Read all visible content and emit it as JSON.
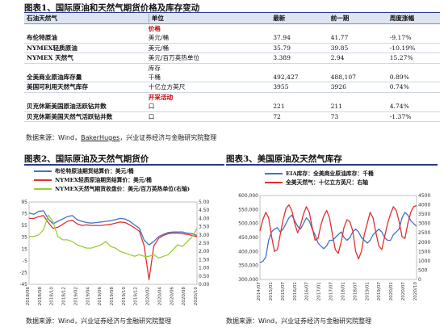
{
  "table": {
    "title": "图表1、国际原油和天然气期货价格及库存变动",
    "headers": [
      "石油天然气",
      "单位",
      "最新",
      "前一期",
      "周度涨幅"
    ],
    "sections": [
      {
        "label": "价格",
        "rows": [
          {
            "name": "布伦特原油",
            "unit": "美元/桶",
            "latest": "37.94",
            "prev": "41.77",
            "chg": "-9.17%"
          },
          {
            "name": "NYMEX轻质原油",
            "unit": "美元/桶",
            "latest": "35.79",
            "prev": "39.85",
            "chg": "-10.19%"
          },
          {
            "name": "NYMEX 天然气",
            "unit": "美元/百万英热单位",
            "latest": "3.389",
            "prev": "2.94",
            "chg": "15.27%"
          }
        ]
      },
      {
        "label": "库存",
        "rows": [
          {
            "name": "全美商业原油库存量",
            "unit": "千桶",
            "latest": "492,427",
            "prev": "488,107",
            "chg": "0.89%"
          },
          {
            "name": "美国可利用天然气库存",
            "unit": "十亿立方英尺",
            "latest": "3955",
            "prev": "3926",
            "chg": "0.74%"
          }
        ]
      },
      {
        "label": "开采活动",
        "rows": [
          {
            "name": "贝克休斯美国原油活跃钻井数",
            "unit": "口",
            "latest": "221",
            "prev": "211",
            "chg": "4.74%"
          },
          {
            "name": "贝克休斯美国天然气活跃钻井数",
            "unit": "口",
            "latest": "72",
            "prev": "73",
            "chg": "-1.37%"
          }
        ]
      }
    ],
    "source_prefix": "数据来源：Wind，",
    "source_link": "BakerHuges",
    "source_suffix": "，兴业证券经济与金融研究院整理"
  },
  "colors": {
    "rule": "#2b3a8c",
    "blue": "#4472c4",
    "red": "#e0302f",
    "green": "#9acd32",
    "section": "#c00000"
  },
  "chart_data": [
    {
      "type": "line",
      "title": "图表2、国际原油及天然气期货价",
      "source": "数据来源：Wind，兴业证券经济与金融研究院整理",
      "y_left": {
        "min": -45,
        "max": 95,
        "ticks": [
          "-45",
          "-25",
          "-5",
          "15",
          "35",
          "55",
          "75",
          "95"
        ]
      },
      "y_right": {
        "min": 0.0,
        "max": 5.0,
        "ticks": [
          "0.00",
          "0.50",
          "1.00",
          "1.50",
          "2.00",
          "2.50",
          "3.00",
          "3.50",
          "4.00",
          "4.50",
          "5.00"
        ]
      },
      "x_ticks": [
        "2018/06",
        "2018/08",
        "2018/10",
        "2018/12",
        "2019/02",
        "2019/04",
        "2019/06",
        "2019/08",
        "2019/10",
        "2019/12",
        "2020/02",
        "2020/04",
        "2020/06",
        "2020/08",
        "2020/10"
      ],
      "series": [
        {
          "name": "布伦特原油期货结算价：美元/桶",
          "axis": "left",
          "color": "#4472c4",
          "values": [
            76,
            74,
            79,
            80,
            66,
            58,
            62,
            66,
            70,
            72,
            65,
            62,
            60,
            59,
            60,
            61,
            62,
            63,
            65,
            67,
            66,
            62,
            56,
            50,
            30,
            22,
            28,
            36,
            40,
            43,
            44,
            44,
            44,
            42,
            41,
            38
          ]
        },
        {
          "name": "NYMEX轻质原油期货结算价：美元/桶",
          "axis": "left",
          "color": "#e0302f",
          "values": [
            67,
            67,
            70,
            72,
            60,
            50,
            52,
            57,
            62,
            64,
            58,
            55,
            56,
            55,
            55,
            55,
            56,
            57,
            59,
            61,
            60,
            56,
            51,
            45,
            20,
            -37,
            20,
            33,
            38,
            41,
            42,
            42,
            41,
            40,
            38,
            36
          ]
        },
        {
          "name": "NYMEX天然气期货收盘价：美元/百万英热单位(右轴)",
          "axis": "right",
          "color": "#9acd32",
          "values": [
            2.9,
            2.9,
            3.0,
            3.3,
            4.2,
            3.8,
            2.9,
            2.7,
            2.7,
            2.6,
            2.4,
            2.3,
            2.2,
            2.2,
            2.3,
            2.4,
            2.6,
            2.3,
            2.2,
            2.0,
            1.9,
            1.8,
            1.7,
            1.8,
            1.7,
            1.7,
            1.8,
            1.6,
            1.7,
            1.8,
            2.1,
            2.4,
            2.3,
            2.6,
            2.9,
            3.389
          ]
        }
      ]
    },
    {
      "type": "line",
      "title": "图表3、美国原油及天然气库存",
      "source": "数据来源：Wind，兴业证券经济与金融研究院整理",
      "y_left": {
        "min": 300000,
        "max": 600000,
        "ticks": [
          "300,000",
          "350,000",
          "400,000",
          "450,000",
          "500,000",
          "550,000",
          "600,000"
        ]
      },
      "y_right": {
        "min": 0,
        "max": 4500,
        "ticks": [
          "0",
          "500",
          "1000",
          "1500",
          "2000",
          "2500",
          "3000",
          "3500",
          "4000",
          "4500"
        ]
      },
      "x_ticks": [
        "2014/07",
        "2015/01",
        "2015/07",
        "2016/01",
        "2016/07",
        "2017/01",
        "2017/07",
        "2018/01",
        "2018/07",
        "2019/01",
        "2019/07",
        "2020/01",
        "2020/07",
        "2020/10"
      ],
      "series": [
        {
          "name": "EIA库存：全美商业原油库存：千桶",
          "axis": "left",
          "color": "#4472c4",
          "values": [
            360,
            365,
            380,
            440,
            470,
            480,
            485,
            470,
            480,
            500,
            520,
            530,
            510,
            490,
            480,
            500,
            520,
            510,
            480,
            460,
            430,
            420,
            410,
            420,
            440,
            440,
            450,
            460,
            470,
            450,
            440,
            450,
            470,
            480,
            470,
            450,
            440,
            430,
            440,
            460,
            470,
            480,
            470,
            450,
            440,
            440,
            460,
            470,
            480,
            520,
            540,
            530,
            510,
            500,
            490
          ]
        },
        {
          "name": "全美天然气：十亿立方英尺：右轴",
          "axis": "right",
          "color": "#e0302f",
          "values": [
            2600,
            3200,
            3600,
            3300,
            2300,
            1500,
            1600,
            2400,
            3200,
            3800,
            4000,
            3700,
            3000,
            2500,
            2900,
            3500,
            3900,
            3600,
            2800,
            2100,
            2200,
            2900,
            3400,
            3700,
            3300,
            2400,
            1600,
            1400,
            2000,
            2800,
            3200,
            3100,
            2600,
            1500,
            1100,
            1500,
            2400,
            3000,
            3600,
            3300,
            2500,
            1800,
            1600,
            2300,
            3000,
            3500,
            3900,
            3700,
            3100,
            2300,
            2200,
            3000,
            3600,
            3900,
            3955
          ]
        }
      ]
    }
  ]
}
